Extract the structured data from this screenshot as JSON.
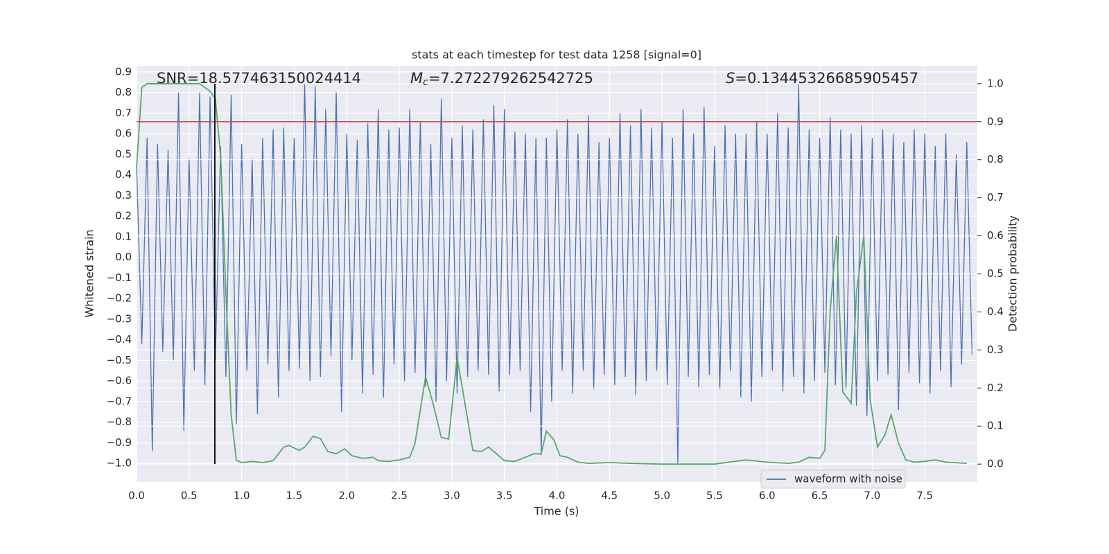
{
  "chart_data": {
    "type": "line",
    "title": "stats at each timestep for test data 1258 [signal=0]",
    "xlabel": "Time (s)",
    "ylabel": "Whitened strain",
    "y2label": "Detection probability",
    "xlim": [
      0,
      8.0
    ],
    "ylim": [
      -1.09,
      0.93
    ],
    "y2lim": [
      -0.047,
      1.047
    ],
    "xticks": [
      {
        "value": 0,
        "label": "0.0"
      },
      0.5,
      {
        "value": 1,
        "label": "1.0"
      },
      1.5,
      {
        "value": 2,
        "label": "2.0"
      },
      2.5,
      {
        "value": 3,
        "label": "3.0"
      },
      3.5,
      {
        "value": 4,
        "label": "4.0"
      },
      4.5,
      {
        "value": 5,
        "label": "5.0"
      },
      5.5,
      {
        "value": 6,
        "label": "6.0"
      },
      6.5,
      {
        "value": 7,
        "label": "7.0"
      },
      7.5
    ],
    "yticks": [
      {
        "value": -1,
        "label": "−1.0"
      },
      {
        "value": -0.9,
        "label": "−0.9"
      },
      {
        "value": -0.8,
        "label": "−0.8"
      },
      {
        "value": -0.7,
        "label": "−0.7"
      },
      {
        "value": -0.6,
        "label": "−0.6"
      },
      {
        "value": -0.5,
        "label": "−0.5"
      },
      {
        "value": -0.4,
        "label": "−0.4"
      },
      {
        "value": -0.3,
        "label": "−0.3"
      },
      {
        "value": -0.2,
        "label": "−0.2"
      },
      {
        "value": -0.1,
        "label": "−0.1"
      },
      {
        "value": 0,
        "label": "0.0"
      },
      0.1,
      0.2,
      0.3,
      0.4,
      0.5,
      0.6,
      0.7,
      0.8,
      0.9
    ],
    "y2ticks": [
      {
        "value": 0,
        "label": "0.0"
      },
      0.1,
      0.2,
      0.3,
      0.4,
      0.5,
      0.6,
      0.7,
      0.8,
      0.9,
      {
        "value": 1,
        "label": "1.0"
      }
    ],
    "grid": true,
    "legend": "lower right",
    "series": [
      {
        "name": "waveform with noise",
        "color": "#4c72b0",
        "x": [
          0,
          0.05,
          0.1,
          0.15,
          0.2,
          0.25,
          0.3,
          0.35,
          0.4,
          0.45,
          0.5,
          0.55,
          0.6,
          0.65,
          0.7,
          0.75,
          0.8,
          0.85,
          0.9,
          0.95,
          1,
          1.05,
          1.1,
          1.15,
          1.2,
          1.25,
          1.3,
          1.35,
          1.4,
          1.45,
          1.5,
          1.55,
          1.6,
          1.65,
          1.7,
          1.75,
          1.8,
          1.85,
          1.9,
          1.95,
          2,
          2.05,
          2.1,
          2.15,
          2.2,
          2.25,
          2.3,
          2.35,
          2.4,
          2.45,
          2.5,
          2.55,
          2.6,
          2.65,
          2.7,
          2.75,
          2.8,
          2.85,
          2.9,
          2.95,
          3,
          3.05,
          3.1,
          3.15,
          3.2,
          3.25,
          3.3,
          3.35,
          3.4,
          3.45,
          3.5,
          3.55,
          3.6,
          3.65,
          3.7,
          3.75,
          3.8,
          3.85,
          3.9,
          3.95,
          4,
          4.05,
          4.1,
          4.15,
          4.2,
          4.25,
          4.3,
          4.35,
          4.4,
          4.45,
          4.5,
          4.55,
          4.6,
          4.65,
          4.7,
          4.75,
          4.8,
          4.85,
          4.9,
          4.95,
          5,
          5.05,
          5.1,
          5.15,
          5.2,
          5.25,
          5.3,
          5.35,
          5.4,
          5.45,
          5.5,
          5.55,
          5.6,
          5.65,
          5.7,
          5.75,
          5.8,
          5.85,
          5.9,
          5.95,
          6,
          6.05,
          6.1,
          6.15,
          6.2,
          6.25,
          6.3,
          6.35,
          6.4,
          6.45,
          6.5,
          6.55,
          6.6,
          6.65,
          6.7,
          6.75,
          6.8,
          6.85,
          6.9,
          6.95,
          7,
          7.05,
          7.1,
          7.15,
          7.2,
          7.25,
          7.3,
          7.35,
          7.4,
          7.45,
          7.5,
          7.55,
          7.6,
          7.65,
          7.7,
          7.75,
          7.8,
          7.85,
          7.9,
          7.95
        ],
        "values": [
          0.45,
          -0.42,
          0.58,
          -0.94,
          0.55,
          -0.46,
          0.52,
          -0.5,
          0.8,
          -0.84,
          0.48,
          -0.55,
          0.8,
          -0.62,
          0.78,
          -0.5,
          0.54,
          -0.58,
          0.79,
          -0.81,
          0.55,
          -0.55,
          0.48,
          -0.76,
          0.58,
          -0.52,
          0.62,
          -0.68,
          0.63,
          -0.55,
          0.58,
          -0.54,
          0.84,
          -0.6,
          0.83,
          -0.58,
          0.72,
          -0.48,
          0.8,
          -0.75,
          0.6,
          -0.5,
          0.57,
          -0.66,
          0.65,
          -0.57,
          0.72,
          -0.68,
          0.62,
          -0.52,
          0.63,
          -0.6,
          0.72,
          -0.56,
          0.66,
          -0.63,
          0.55,
          -0.7,
          0.77,
          -0.6,
          0.58,
          -0.66,
          0.64,
          -0.58,
          0.62,
          -0.55,
          0.67,
          -0.57,
          0.74,
          -0.65,
          0.72,
          -0.57,
          0.61,
          -0.55,
          0.6,
          -0.75,
          0.58,
          -0.96,
          0.58,
          -0.7,
          0.62,
          -0.55,
          0.67,
          -0.66,
          0.6,
          -0.55,
          0.69,
          -0.64,
          0.56,
          -0.57,
          0.58,
          -0.62,
          0.7,
          -0.58,
          0.64,
          -0.67,
          0.72,
          -0.6,
          0.63,
          -0.55,
          0.66,
          -0.62,
          0.58,
          -1.0,
          0.72,
          -0.58,
          0.6,
          -0.63,
          0.73,
          -0.57,
          0.54,
          -0.64,
          0.64,
          -0.55,
          0.6,
          -0.68,
          0.6,
          -0.7,
          0.66,
          -0.58,
          0.6,
          -0.55,
          0.7,
          -0.65,
          0.63,
          -0.58,
          0.84,
          -0.66,
          0.62,
          -0.6,
          0.58,
          -0.56,
          0.68,
          -0.62,
          0.62,
          -0.64,
          0.6,
          -0.72,
          0.64,
          -0.77,
          0.58,
          -0.6,
          0.62,
          -0.57,
          0.6,
          -0.74,
          0.56,
          -0.56,
          0.62,
          -0.61,
          0.6,
          -0.66,
          0.54,
          -0.55,
          0.6,
          -0.63,
          0.5,
          -0.52,
          0.56,
          -0.47
        ]
      }
    ],
    "probability": {
      "color": "#55a868",
      "axis": "y2",
      "x": [
        0,
        0.05,
        0.1,
        0.6,
        0.7,
        0.75,
        0.8,
        0.85,
        0.9,
        0.95,
        1.0,
        1.1,
        1.2,
        1.3,
        1.4,
        1.45,
        1.55,
        1.6,
        1.68,
        1.75,
        1.82,
        1.9,
        1.98,
        2.05,
        2.15,
        2.25,
        2.3,
        2.4,
        2.5,
        2.6,
        2.65,
        2.75,
        2.82,
        2.9,
        2.97,
        3.05,
        3.1,
        3.2,
        3.28,
        3.35,
        3.5,
        3.6,
        3.7,
        3.78,
        3.85,
        3.9,
        3.97,
        4.03,
        4.1,
        4.2,
        4.3,
        4.5,
        4.7,
        5.0,
        5.5,
        5.8,
        6.0,
        6.2,
        6.3,
        6.4,
        6.5,
        6.55,
        6.6,
        6.66,
        6.72,
        6.8,
        6.85,
        6.92,
        6.98,
        7.05,
        7.12,
        7.18,
        7.25,
        7.32,
        7.4,
        7.5,
        7.6,
        7.7,
        7.9
      ],
      "values": [
        0.78,
        0.99,
        1.0,
        1.0,
        0.98,
        0.96,
        0.81,
        0.45,
        0.13,
        0.01,
        0.004,
        0.007,
        0.004,
        0.009,
        0.045,
        0.049,
        0.036,
        0.045,
        0.073,
        0.067,
        0.033,
        0.027,
        0.04,
        0.022,
        0.015,
        0.018,
        0.009,
        0.007,
        0.011,
        0.018,
        0.055,
        0.23,
        0.16,
        0.07,
        0.066,
        0.28,
        0.2,
        0.036,
        0.033,
        0.045,
        0.009,
        0.007,
        0.018,
        0.027,
        0.027,
        0.087,
        0.064,
        0.022,
        0.018,
        0.005,
        0.002,
        0.004,
        0.002,
        0.0,
        0.0,
        0.011,
        0.005,
        0.002,
        0.005,
        0.018,
        0.015,
        0.036,
        0.4,
        0.6,
        0.19,
        0.16,
        0.45,
        0.6,
        0.17,
        0.045,
        0.076,
        0.13,
        0.055,
        0.011,
        0.005,
        0.007,
        0.011,
        0.005,
        0.002
      ]
    },
    "threshold": {
      "value": 0.9,
      "color": "#c44e52",
      "axis": "y2"
    },
    "marker": {
      "x": 0.745,
      "color": "#000000"
    },
    "annotations": {
      "snr": "SNR=18.577463150024414",
      "mc_symbol": "M",
      "mc_subscript": "c",
      "mc_value": "=7.272279262542725",
      "s_symbol": "S",
      "s_value": "=0.13445326685905457"
    }
  }
}
